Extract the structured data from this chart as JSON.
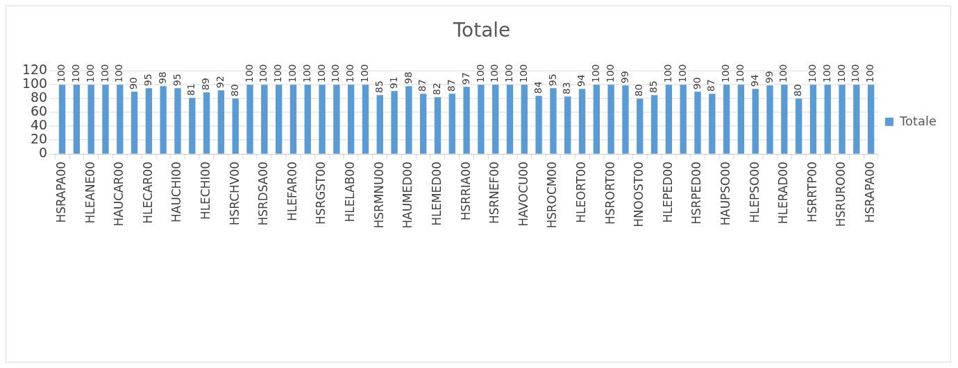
{
  "chart_data": {
    "type": "bar",
    "title": "Totale",
    "categories": [
      "HSRAPA00",
      null,
      "HLEANE00",
      null,
      "HAUCAR00",
      null,
      "HLECAR00",
      null,
      "HAUCHI00",
      null,
      "HLECHI00",
      null,
      "HSRCHV00",
      null,
      "HSRDSA00",
      null,
      "HLEFAR00",
      null,
      "HSRGST00",
      null,
      "HLELAB00",
      null,
      "HSRMNU00",
      null,
      "HAUMED00",
      null,
      "HLEMED00",
      null,
      "HSRRIA00",
      null,
      "HSRNEF00",
      null,
      "HAVOCU00",
      null,
      "HSROCM00",
      null,
      "HLEORT00",
      null,
      "HSRORT00",
      null,
      "HNOOST00",
      null,
      "HLEPED00",
      null,
      "HSRPED00",
      null,
      "HAUPSO00",
      null,
      "HLEPSO00",
      null,
      "HLERAD00",
      null,
      "HSRRTP00",
      null,
      "HSRURO00",
      null,
      "HSRAPA00"
    ],
    "series": [
      {
        "name": "Totale",
        "color": "#5b9bd5",
        "values": [
          100,
          100,
          100,
          100,
          100,
          90,
          95,
          98,
          95,
          81,
          89,
          92,
          80,
          100,
          100,
          100,
          100,
          100,
          100,
          100,
          100,
          100,
          85,
          91,
          98,
          87,
          82,
          87,
          97,
          100,
          100,
          100,
          100,
          84,
          95,
          83,
          94,
          100,
          100,
          99,
          80,
          85,
          100,
          100,
          90,
          87,
          100,
          100,
          94,
          99,
          100,
          80,
          100,
          100,
          100,
          100,
          100
        ]
      }
    ],
    "ylim": [
      0,
      120
    ],
    "yticks": [
      0,
      20,
      40,
      60,
      80,
      100,
      120
    ],
    "grid": "y",
    "legend": "right",
    "data_labels": true
  }
}
